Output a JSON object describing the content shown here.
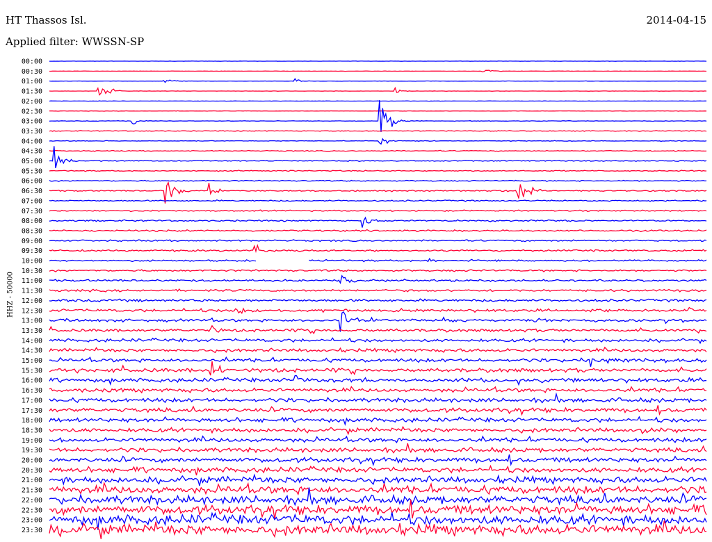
{
  "header": {
    "station": "HT Thassos Isl.",
    "date": "2014-04-15",
    "filter": "Applied filter: WWSSN-SP"
  },
  "chart_data": {
    "type": "line",
    "title": "HT Thassos Isl.",
    "ylabel": "HHZ - 50000",
    "row_interval_minutes": 30,
    "row_labels": [
      "00:00",
      "00:30",
      "01:00",
      "01:30",
      "02:00",
      "02:30",
      "03:00",
      "03:30",
      "04:00",
      "04:30",
      "05:00",
      "05:30",
      "06:00",
      "06:30",
      "07:00",
      "07:30",
      "08:00",
      "08:30",
      "09:00",
      "09:30",
      "10:00",
      "10:30",
      "11:00",
      "11:30",
      "12:00",
      "12:30",
      "13:00",
      "13:30",
      "14:00",
      "14:30",
      "15:00",
      "15:30",
      "16:00",
      "16:30",
      "17:00",
      "17:30",
      "18:00",
      "18:30",
      "19:00",
      "19:30",
      "20:00",
      "20:30",
      "21:00",
      "21:30",
      "22:00",
      "22:30",
      "23:00",
      "23:30"
    ],
    "colors": [
      "#0000ff",
      "#ff0033"
    ],
    "noise_level": [
      0.2,
      0.2,
      0.25,
      0.25,
      0.2,
      0.3,
      0.4,
      0.6,
      0.5,
      0.7,
      0.8,
      0.8,
      0.9,
      1.0,
      1.0,
      1.1,
      1.2,
      1.3,
      1.3,
      1.4,
      1.4,
      1.5,
      1.6,
      1.8,
      2.0,
      2.1,
      2.2,
      2.3,
      2.4,
      2.6,
      2.8,
      3.0,
      3.0,
      3.1,
      3.2,
      3.3,
      3.2,
      3.3,
      3.4,
      3.5,
      3.7,
      4.0,
      5.0,
      6.0,
      6.5,
      7.0,
      7.5,
      8.0
    ],
    "events": [
      {
        "row": 1,
        "minute": 19.7,
        "amp": 3
      },
      {
        "row": 2,
        "minute": 5.2,
        "amp": 4
      },
      {
        "row": 2,
        "minute": 11.2,
        "amp": 3
      },
      {
        "row": 3,
        "minute": 2.2,
        "amp": 12
      },
      {
        "row": 3,
        "minute": 15.8,
        "amp": 3
      },
      {
        "row": 6,
        "minute": 3.8,
        "amp": 4
      },
      {
        "row": 6,
        "minute": 15.1,
        "amp": 24
      },
      {
        "row": 8,
        "minute": 15.1,
        "amp": 5
      },
      {
        "row": 10,
        "minute": 0.2,
        "amp": 14
      },
      {
        "row": 13,
        "minute": 5.3,
        "amp": 22
      },
      {
        "row": 13,
        "minute": 7.3,
        "amp": 8
      },
      {
        "row": 13,
        "minute": 21.4,
        "amp": 22
      },
      {
        "row": 16,
        "minute": 14.3,
        "amp": 8
      },
      {
        "row": 19,
        "minute": 9.4,
        "amp": 6
      },
      {
        "row": 20,
        "minute": 17.2,
        "amp": 6
      },
      {
        "row": 22,
        "minute": 13.3,
        "amp": 12
      },
      {
        "row": 25,
        "minute": 8.5,
        "amp": 5
      },
      {
        "row": 25,
        "minute": 29.2,
        "amp": 6
      },
      {
        "row": 26,
        "minute": 13.3,
        "amp": 16
      },
      {
        "row": 27,
        "minute": 7.4,
        "amp": 7
      },
      {
        "row": 30,
        "minute": 24.7,
        "amp": 10
      },
      {
        "row": 31,
        "minute": 7.4,
        "amp": 14
      },
      {
        "row": 32,
        "minute": 11.2,
        "amp": 6
      },
      {
        "row": 37,
        "minute": 27.1,
        "amp": 8
      }
    ],
    "gaps": [
      {
        "row": 20,
        "start_minute": 9.5,
        "end_minute": 11.8
      }
    ]
  }
}
